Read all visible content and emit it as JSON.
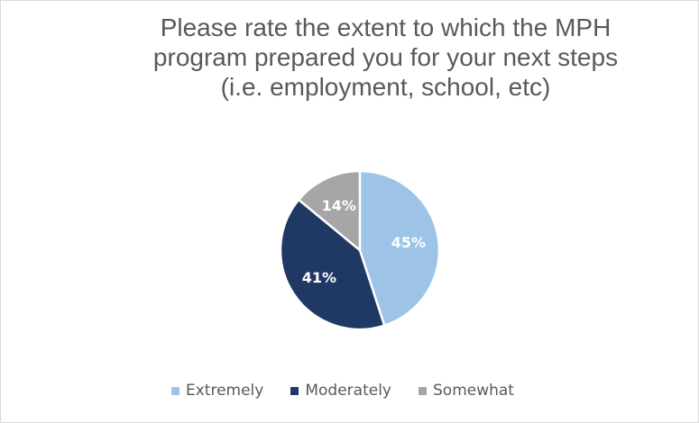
{
  "chart_data": {
    "type": "pie",
    "title_lines": [
      "Please rate the extent to which the MPH",
      "program prepared you for your next steps",
      "(i.e. employment, school, etc)"
    ],
    "slices": [
      {
        "label": "Extremely",
        "value": 45,
        "display": "45%",
        "color": "#9dc3e6"
      },
      {
        "label": "Moderately",
        "value": 41,
        "display": "41%",
        "color": "#203864"
      },
      {
        "label": "Somewhat",
        "value": 14,
        "display": "14%",
        "color": "#a6a6a6"
      }
    ],
    "legend_position": "bottom",
    "data_label_color": "#ffffff",
    "title_color": "#595959"
  }
}
